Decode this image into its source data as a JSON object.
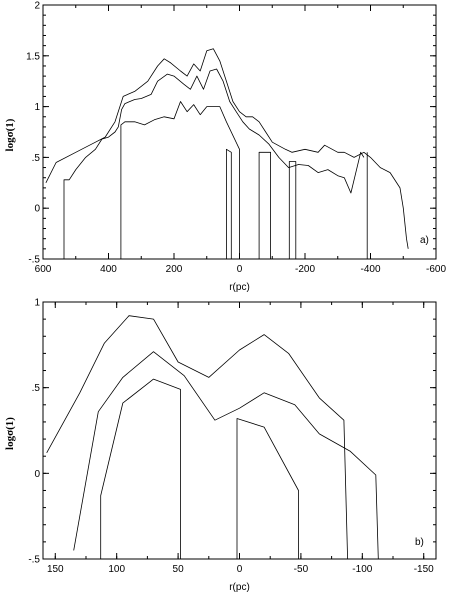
{
  "chart_data": [
    {
      "type": "line",
      "panel_label": "a)",
      "xlabel": "r(pc)",
      "ylabel": "logσ(1)",
      "xlim": [
        600,
        -600
      ],
      "ylim": [
        -0.5,
        2
      ],
      "x_ticks": [
        600,
        400,
        200,
        0,
        -200,
        -400,
        -600
      ],
      "x_tick_labels": [
        "600",
        "400",
        "200",
        "0",
        "-200",
        "-400",
        "-600"
      ],
      "y_ticks": [
        -0.5,
        0,
        0.5,
        1,
        1.5,
        2
      ],
      "y_tick_labels": [
        "-.5",
        "0",
        ".5",
        "1",
        "1.5",
        "2"
      ],
      "series": [
        {
          "points": [
            [
              591,
              0.25
            ],
            [
              560,
              0.45
            ],
            [
              500,
              0.55
            ],
            [
              440,
              0.65
            ],
            [
              410,
              0.7
            ],
            [
              380,
              0.85
            ],
            [
              355,
              1.1
            ],
            [
              320,
              1.15
            ],
            [
              300,
              1.2
            ],
            [
              280,
              1.25
            ],
            [
              250,
              1.4
            ],
            [
              230,
              1.47
            ],
            [
              210,
              1.43
            ],
            [
              180,
              1.35
            ],
            [
              160,
              1.3
            ],
            [
              140,
              1.42
            ],
            [
              120,
              1.35
            ],
            [
              100,
              1.55
            ],
            [
              80,
              1.57
            ],
            [
              60,
              1.45
            ],
            [
              40,
              1.25
            ],
            [
              20,
              1.05
            ],
            [
              0,
              0.95
            ],
            [
              -20,
              0.9
            ],
            [
              -40,
              0.9
            ],
            [
              -60,
              0.85
            ],
            [
              -80,
              0.75
            ],
            [
              -100,
              0.65
            ],
            [
              -140,
              0.58
            ],
            [
              -160,
              0.55
            ],
            [
              -200,
              0.58
            ],
            [
              -240,
              0.55
            ],
            [
              -260,
              0.62
            ],
            [
              -300,
              0.55
            ],
            [
              -320,
              0.55
            ],
            [
              -350,
              0.5
            ],
            [
              -380,
              0.55
            ],
            [
              -400,
              0.5
            ],
            [
              -430,
              0.4
            ],
            [
              -460,
              0.35
            ],
            [
              -490,
              0.2
            ],
            [
              -500,
              0.0
            ],
            [
              -510,
              -0.3
            ],
            [
              -515,
              -0.4
            ]
          ]
        },
        {
          "points": [
            [
              536,
              -0.5
            ],
            [
              536,
              0.28
            ],
            [
              520,
              0.28
            ],
            [
              500,
              0.38
            ],
            [
              470,
              0.5
            ],
            [
              440,
              0.58
            ],
            [
              420,
              0.68
            ],
            [
              400,
              0.7
            ],
            [
              380,
              0.75
            ],
            [
              370,
              0.8
            ],
            [
              360,
              0.97
            ],
            [
              350,
              1.03
            ],
            [
              320,
              1.07
            ],
            [
              300,
              1.08
            ],
            [
              270,
              1.12
            ],
            [
              250,
              1.25
            ],
            [
              220,
              1.32
            ],
            [
              200,
              1.3
            ],
            [
              170,
              1.22
            ],
            [
              150,
              1.17
            ],
            [
              130,
              1.3
            ],
            [
              110,
              1.17
            ],
            [
              90,
              1.35
            ],
            [
              70,
              1.37
            ],
            [
              50,
              1.25
            ],
            [
              30,
              1.05
            ],
            [
              10,
              0.95
            ],
            [
              -10,
              0.85
            ],
            [
              -30,
              0.78
            ],
            [
              -60,
              0.72
            ],
            [
              -90,
              0.63
            ],
            [
              -120,
              0.5
            ],
            [
              -150,
              0.4
            ],
            [
              -180,
              0.43
            ],
            [
              -210,
              0.42
            ],
            [
              -240,
              0.35
            ],
            [
              -270,
              0.38
            ],
            [
              -300,
              0.32
            ],
            [
              -320,
              0.3
            ],
            [
              -340,
              0.15
            ],
            [
              -370,
              0.55
            ],
            [
              -380,
              0.5
            ]
          ]
        },
        {
          "points": [
            [
              362,
              -0.5
            ],
            [
              362,
              0.82
            ],
            [
              350,
              0.85
            ],
            [
              320,
              0.85
            ],
            [
              290,
              0.82
            ],
            [
              260,
              0.87
            ],
            [
              230,
              0.9
            ],
            [
              200,
              0.88
            ],
            [
              180,
              1.05
            ],
            [
              160,
              0.95
            ],
            [
              140,
              1.02
            ],
            [
              120,
              0.92
            ],
            [
              100,
              1.0
            ],
            [
              60,
              1.0
            ],
            [
              40,
              0.85
            ],
            [
              0,
              0.58
            ],
            [
              0,
              -0.5
            ]
          ]
        },
        {
          "points": [
            [
              40,
              -0.5
            ],
            [
              40,
              0.58
            ],
            [
              25,
              0.55
            ],
            [
              25,
              -0.5
            ]
          ]
        },
        {
          "points": [
            [
              -60,
              -0.5
            ],
            [
              -60,
              0.55
            ],
            [
              -95,
              0.55
            ],
            [
              -95,
              -0.5
            ]
          ]
        },
        {
          "points": [
            [
              -152,
              -0.5
            ],
            [
              -152,
              0.46
            ],
            [
              -172,
              0.46
            ],
            [
              -172,
              -0.5
            ]
          ]
        },
        {
          "points": [
            [
              -390,
              -0.5
            ],
            [
              -390,
              0.55
            ]
          ]
        }
      ]
    },
    {
      "type": "line",
      "panel_label": "b)",
      "xlabel": "r(pc)",
      "ylabel": "logσ(1)",
      "xlim": [
        160,
        -160
      ],
      "ylim": [
        -0.5,
        1
      ],
      "x_ticks": [
        150,
        100,
        50,
        0,
        -50,
        -100,
        -150
      ],
      "x_tick_labels": [
        "150",
        "100",
        "50",
        "0",
        "-50",
        "-100",
        "-150"
      ],
      "y_ticks": [
        -0.5,
        0,
        0.5,
        1
      ],
      "y_tick_labels": [
        "-.5",
        "0",
        ".5",
        "1"
      ],
      "series": [
        {
          "points": [
            [
              157,
              0.12
            ],
            [
              130,
              0.47
            ],
            [
              110,
              0.76
            ],
            [
              90,
              0.92
            ],
            [
              70,
              0.9
            ],
            [
              50,
              0.65
            ],
            [
              25,
              0.56
            ],
            [
              0,
              0.72
            ],
            [
              -20,
              0.81
            ],
            [
              -40,
              0.7
            ],
            [
              -65,
              0.44
            ],
            [
              -85,
              0.31
            ],
            [
              -88,
              -0.5
            ]
          ]
        },
        {
          "points": [
            [
              135,
              -0.45
            ],
            [
              115,
              0.36
            ],
            [
              95,
              0.56
            ],
            [
              70,
              0.71
            ],
            [
              45,
              0.57
            ],
            [
              20,
              0.31
            ],
            [
              0,
              0.38
            ],
            [
              -20,
              0.47
            ],
            [
              -45,
              0.4
            ],
            [
              -65,
              0.23
            ],
            [
              -90,
              0.13
            ],
            [
              -111,
              -0.01
            ],
            [
              -113,
              -0.5
            ]
          ]
        },
        {
          "points": [
            [
              113,
              -0.5
            ],
            [
              113,
              -0.13
            ],
            [
              95,
              0.41
            ],
            [
              70,
              0.55
            ],
            [
              48,
              0.49
            ],
            [
              48,
              -0.5
            ]
          ]
        },
        {
          "points": [
            [
              2,
              -0.5
            ],
            [
              2,
              0.32
            ],
            [
              -20,
              0.27
            ],
            [
              -48,
              -0.1
            ],
            [
              -48,
              -0.5
            ]
          ]
        }
      ]
    }
  ]
}
